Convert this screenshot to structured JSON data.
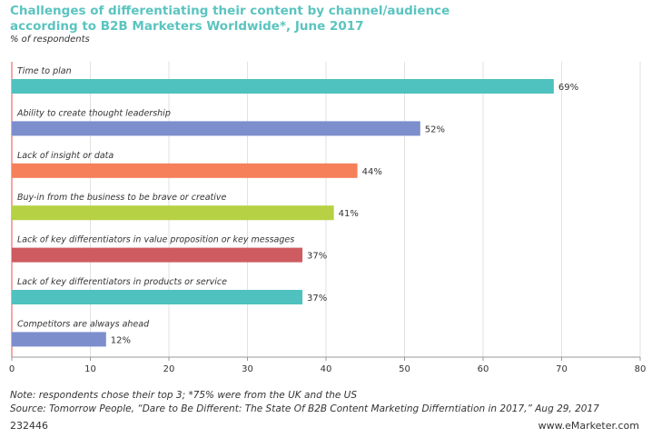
{
  "header": {
    "title": "Challenges of differentiating their content by channel/audience according to B2B Marketers Worldwide*, June 2017",
    "subtitle": "% of respondents"
  },
  "footer": {
    "note": "Note: respondents chose their top 3; *75% were from the UK and the US",
    "source": "Source: Tomorrow People, “Dare to Be Different: The State Of B2B Content Marketing Differntiation in 2017,” Aug 29, 2017",
    "id": "232446",
    "brand": "www.eMarketer.com"
  },
  "chart_data": {
    "type": "bar",
    "orientation": "horizontal",
    "categories": [
      "Time to plan",
      "Ability to create thought leadership",
      "Lack of insight or data",
      "Buy-in from the business to be brave or creative",
      "Lack of key differentiators in value proposition or key messages",
      "Lack of key differentiators in products or service",
      "Competitors are always ahead"
    ],
    "values": [
      69,
      52,
      44,
      41,
      37,
      37,
      12
    ],
    "value_labels": [
      "69%",
      "52%",
      "44%",
      "41%",
      "37%",
      "37%",
      "12%"
    ],
    "colors": [
      "#4fc1bf",
      "#7d8ecd",
      "#f5805a",
      "#b6d143",
      "#cd5b5f",
      "#4fc1bf",
      "#7d8ecd"
    ],
    "xlim": [
      0,
      80
    ],
    "xticks": [
      0,
      10,
      20,
      30,
      40,
      50,
      60,
      70,
      80
    ],
    "grid": true
  }
}
